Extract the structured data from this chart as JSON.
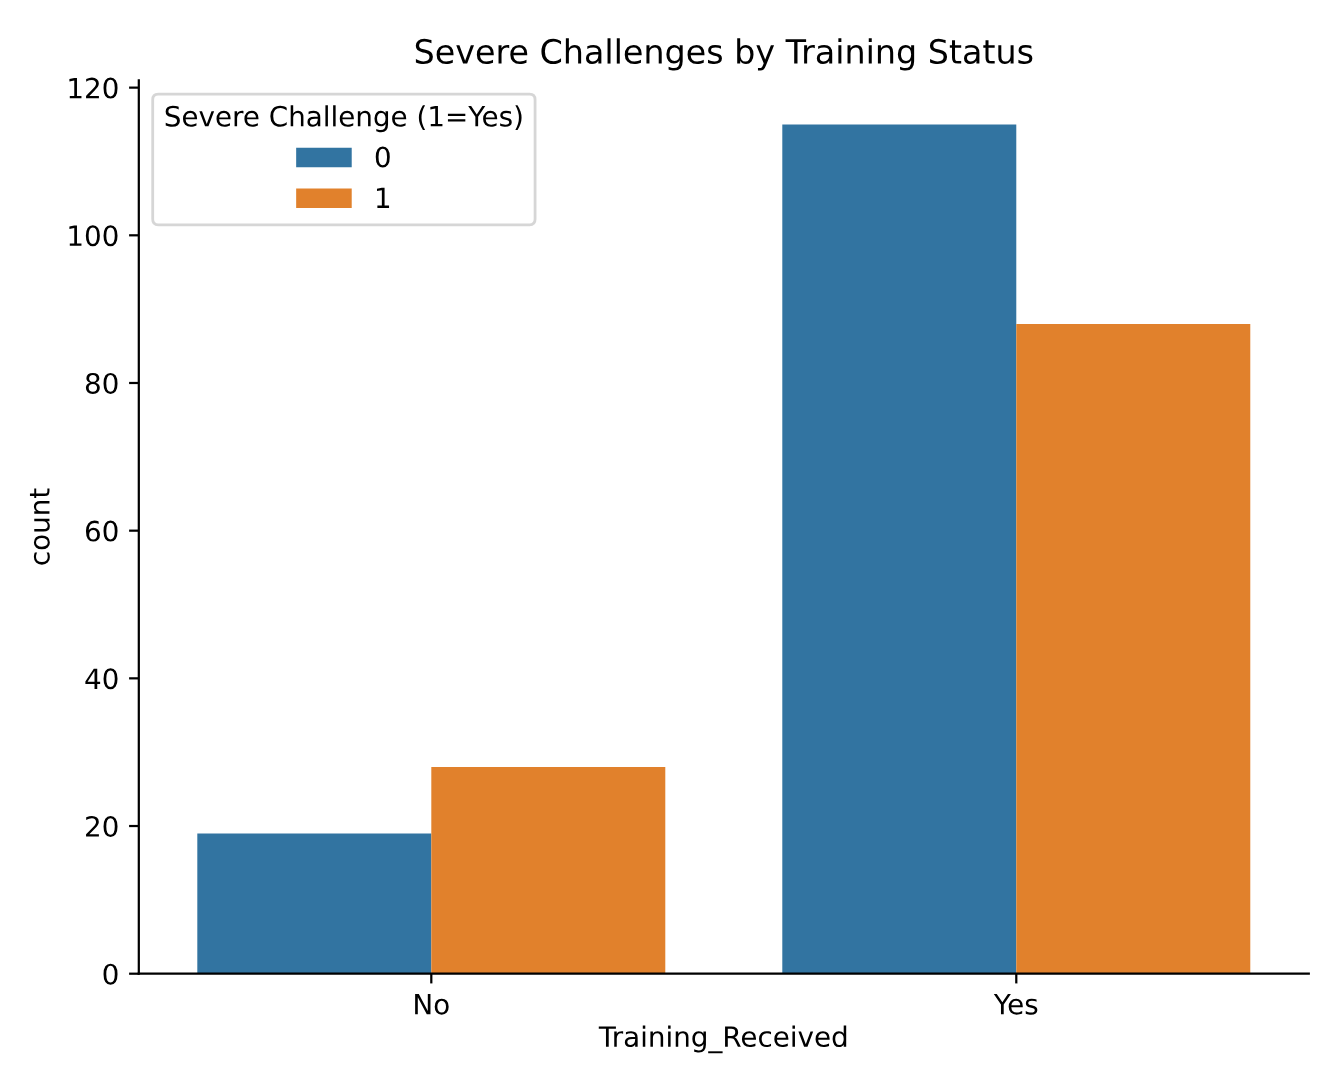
{
  "chart_data": {
    "type": "bar",
    "title": "Severe Challenges by Training Status",
    "xlabel": "Training_Received",
    "ylabel": "count",
    "legend_title": "Severe Challenge (1=Yes)",
    "categories": [
      "No",
      "Yes"
    ],
    "series": [
      {
        "name": "0",
        "color": "#3274a1",
        "values": [
          19,
          115
        ]
      },
      {
        "name": "1",
        "color": "#e1812c",
        "values": [
          28,
          88
        ]
      }
    ],
    "ylim": [
      0,
      121
    ],
    "yticks": [
      0,
      20,
      40,
      60,
      80,
      100,
      120
    ],
    "legend": "top left",
    "grid": false
  }
}
